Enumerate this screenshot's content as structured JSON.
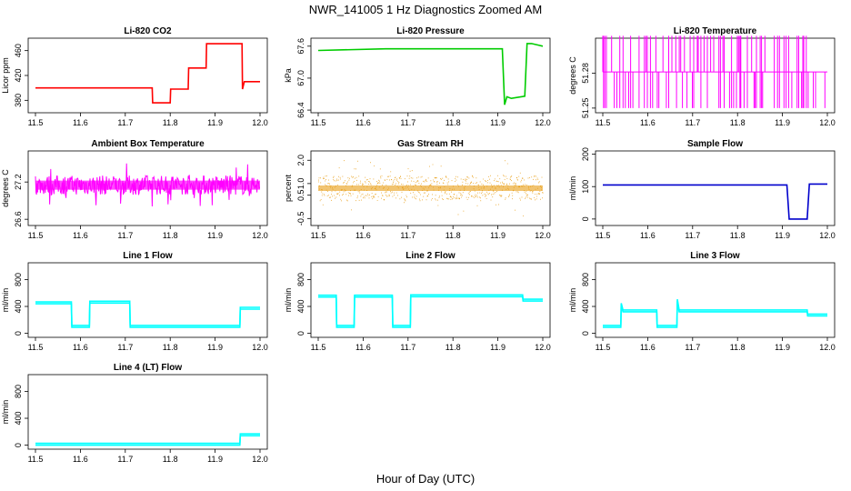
{
  "title": "NWR_141005  1 Hz Diagnostics Zoomed AM",
  "xlabel": "Hour of Day (UTC)",
  "x_ticks": [
    "11.5",
    "11.6",
    "11.7",
    "11.8",
    "11.9",
    "12.0"
  ],
  "chart_data": [
    {
      "type": "line",
      "title": "Li-820 CO2",
      "ylabel": "Licor ppm",
      "color": "#ff0000",
      "ylim": [
        360,
        480
      ],
      "yticks": [
        "380",
        "420",
        "460"
      ],
      "x": [
        11.5,
        11.76,
        11.761,
        11.8,
        11.801,
        11.84,
        11.841,
        11.88,
        11.881,
        11.96,
        11.961,
        11.965,
        11.966,
        12.0
      ],
      "y": [
        400,
        400,
        376,
        376,
        398,
        398,
        432,
        432,
        471,
        471,
        398,
        410,
        410,
        410
      ]
    },
    {
      "type": "line",
      "title": "Li-820 Pressure",
      "ylabel": "kPa",
      "color": "#00cc00",
      "ylim": [
        66.35,
        67.75
      ],
      "yticks": [
        "66.4",
        "67.0",
        "67.6"
      ],
      "x": [
        11.5,
        11.65,
        11.8,
        11.91,
        11.915,
        11.92,
        11.93,
        11.96,
        11.965,
        11.975,
        11.99,
        12.0
      ],
      "y": [
        67.52,
        67.55,
        67.55,
        67.55,
        66.5,
        66.65,
        66.62,
        66.66,
        67.65,
        67.65,
        67.62,
        67.6
      ]
    },
    {
      "type": "line",
      "title": "Li-820 Temperature",
      "ylabel": "degrees C",
      "color": "#ff00ff",
      "ylim": [
        51.246,
        51.31
      ],
      "yticks": [
        "51.25",
        "51.28"
      ],
      "levels": [
        51.25,
        51.281,
        51.312
      ],
      "x_range": [
        11.5,
        12.0
      ]
    },
    {
      "type": "line",
      "title": "Ambient Box Temperature",
      "ylabel": "degrees C",
      "color": "#ff00ff",
      "ylim": [
        26.5,
        27.7
      ],
      "yticks": [
        "26.6",
        "27.2"
      ],
      "center": 27.15,
      "noise_range": [
        26.7,
        27.5
      ],
      "x_range": [
        11.5,
        12.0
      ]
    },
    {
      "type": "scatter",
      "title": "Gas Stream RH",
      "ylabel": "percent",
      "color": "#e69500",
      "ylim": [
        -0.8,
        2.4
      ],
      "yticks": [
        "-0.5",
        "0.5",
        "1.0",
        "2.0"
      ],
      "center": 0.8,
      "noise_range": [
        -0.4,
        2.0
      ],
      "x_range": [
        11.5,
        12.0
      ]
    },
    {
      "type": "line",
      "title": "Sample Flow",
      "ylabel": "ml/min",
      "color": "#0000cc",
      "ylim": [
        -20,
        210
      ],
      "yticks": [
        "0",
        "100",
        "200"
      ],
      "x": [
        11.5,
        11.91,
        11.915,
        11.955,
        11.96,
        12.0
      ],
      "y": [
        105,
        105,
        0,
        0,
        108,
        108
      ]
    },
    {
      "type": "line",
      "title": "Line 1 Flow",
      "ylabel": "ml/min",
      "color": "#00ffff",
      "ylim": [
        -60,
        1050
      ],
      "yticks": [
        "0",
        "400",
        "800"
      ],
      "x": [
        11.5,
        11.58,
        11.581,
        11.62,
        11.621,
        11.71,
        11.711,
        11.955,
        11.956,
        12.0
      ],
      "y": [
        440,
        440,
        90,
        90,
        450,
        450,
        90,
        90,
        360,
        360
      ]
    },
    {
      "type": "line",
      "title": "Line 2 Flow",
      "ylabel": "ml/min",
      "color": "#00ffff",
      "ylim": [
        -60,
        1050
      ],
      "yticks": [
        "0",
        "400",
        "800"
      ],
      "x": [
        11.5,
        11.54,
        11.541,
        11.58,
        11.581,
        11.665,
        11.666,
        11.705,
        11.706,
        11.955,
        11.956,
        12.0
      ],
      "y": [
        540,
        540,
        90,
        90,
        540,
        540,
        90,
        90,
        545,
        545,
        480,
        480
      ]
    },
    {
      "type": "line",
      "title": "Line 3 Flow",
      "ylabel": "ml/min",
      "color": "#00ffff",
      "ylim": [
        -60,
        1050
      ],
      "yticks": [
        "0",
        "400",
        "800"
      ],
      "x": [
        11.5,
        11.54,
        11.541,
        11.545,
        11.546,
        11.62,
        11.621,
        11.665,
        11.666,
        11.67,
        11.671,
        11.955,
        11.956,
        12.0
      ],
      "y": [
        90,
        90,
        420,
        320,
        320,
        320,
        90,
        90,
        480,
        320,
        320,
        320,
        260,
        260
      ]
    },
    {
      "type": "line",
      "title": "Line 4 (LT) Flow",
      "ylabel": "ml/min",
      "color": "#00ffff",
      "ylim": [
        -60,
        1050
      ],
      "yticks": [
        "0",
        "400",
        "800"
      ],
      "x": [
        11.5,
        11.955,
        11.956,
        12.0
      ],
      "y": [
        0,
        0,
        140,
        140
      ]
    }
  ]
}
